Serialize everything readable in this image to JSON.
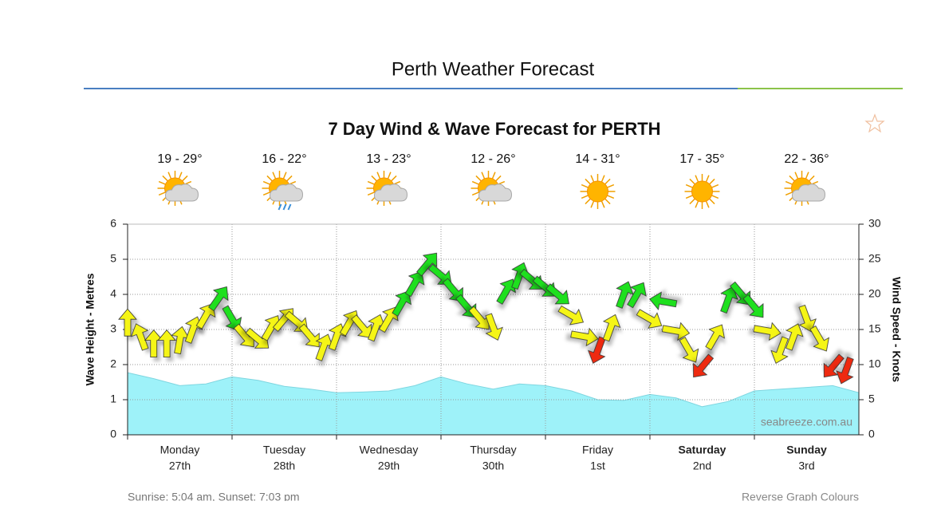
{
  "page_title": "Perth Weather Forecast",
  "chart_data": {
    "type": "wind-wave",
    "title": "7 Day Wind & Wave Forecast for PERTH",
    "days": [
      {
        "name": "Monday",
        "date": "27th",
        "temps": "19 - 29°",
        "bold": false
      },
      {
        "name": "Tuesday",
        "date": "28th",
        "temps": "16 - 22°",
        "bold": false
      },
      {
        "name": "Wednesday",
        "date": "29th",
        "temps": "13 - 23°",
        "bold": false
      },
      {
        "name": "Thursday",
        "date": "30th",
        "temps": "12 - 26°",
        "bold": false
      },
      {
        "name": "Friday",
        "date": "1st",
        "temps": "14 - 31°",
        "bold": false
      },
      {
        "name": "Saturday",
        "date": "2nd",
        "temps": "17 - 35°",
        "bold": true
      },
      {
        "name": "Sunday",
        "date": "3rd",
        "temps": "22 - 36°",
        "bold": true
      }
    ],
    "xlim": [
      0,
      7
    ],
    "y_label": "Wave Height - Metres",
    "y2_label": "Wind Speed - Knots",
    "ylim": [
      0,
      6
    ],
    "yticks": [
      0,
      1,
      2,
      3,
      4,
      5,
      6
    ],
    "y2lim": [
      0,
      30
    ],
    "y2ticks": [
      0,
      5,
      10,
      15,
      20,
      25,
      30
    ],
    "grid": true,
    "wave": {
      "color": "#9ef2f9",
      "x": [
        0,
        0.25,
        0.5,
        0.75,
        1,
        1.25,
        1.5,
        1.75,
        2,
        2.25,
        2.5,
        2.75,
        3,
        3.25,
        3.5,
        3.75,
        4,
        4.25,
        4.5,
        4.75,
        5,
        5.25,
        5.5,
        5.75,
        6,
        6.25,
        6.5,
        6.75,
        7
      ],
      "values": [
        1.77,
        1.6,
        1.4,
        1.45,
        1.65,
        1.55,
        1.38,
        1.3,
        1.2,
        1.22,
        1.25,
        1.4,
        1.65,
        1.45,
        1.3,
        1.45,
        1.4,
        1.25,
        1.0,
        0.98,
        1.15,
        1.05,
        0.8,
        0.95,
        1.25,
        1.3,
        1.35,
        1.4,
        1.2
      ]
    },
    "wind": {
      "axis": "y2",
      "x": [
        0,
        0.125,
        0.25,
        0.375,
        0.5,
        0.625,
        0.75,
        0.875,
        1,
        1.125,
        1.25,
        1.375,
        1.5,
        1.625,
        1.75,
        1.875,
        2,
        2.125,
        2.25,
        2.375,
        2.5,
        2.625,
        2.75,
        2.875,
        3,
        3.125,
        3.25,
        3.375,
        3.5,
        3.625,
        3.75,
        3.875,
        4,
        4.125,
        4.25,
        4.375,
        4.5,
        4.625,
        4.75,
        4.875,
        5,
        5.125,
        5.25,
        5.375,
        5.5,
        5.625,
        5.75,
        5.875,
        6,
        6.125,
        6.25,
        6.375,
        6.5,
        6.625,
        6.75,
        6.875
      ],
      "speeds": [
        16,
        14,
        13,
        13,
        13.5,
        15,
        17,
        19.5,
        16.5,
        14,
        13.6,
        15.3,
        16.5,
        16,
        14,
        12.5,
        14,
        16,
        15.3,
        15.3,
        16.5,
        18.8,
        21.6,
        24.4,
        22.7,
        20.5,
        18.2,
        16.5,
        15.3,
        20.5,
        22.7,
        22,
        21,
        19.9,
        17,
        14,
        12,
        15.3,
        20,
        20,
        16.5,
        19,
        14.8,
        12,
        9.7,
        14,
        19.3,
        20,
        18.2,
        14.8,
        12,
        14,
        16.5,
        13.6,
        9.7,
        9.1
      ],
      "angles": [
        0,
        -20,
        0,
        0,
        10,
        20,
        30,
        35,
        150,
        140,
        130,
        30,
        40,
        130,
        140,
        20,
        20,
        30,
        140,
        20,
        30,
        30,
        30,
        40,
        130,
        140,
        140,
        140,
        160,
        30,
        20,
        130,
        130,
        130,
        120,
        100,
        200,
        20,
        20,
        30,
        120,
        280,
        100,
        150,
        220,
        30,
        20,
        140,
        140,
        100,
        200,
        20,
        160,
        150,
        220,
        200
      ],
      "colors": [
        "#f5f516",
        "#f5f516",
        "#f5f516",
        "#f5f516",
        "#f5f516",
        "#f5f516",
        "#f5f516",
        "#1ee01e",
        "#1ee01e",
        "#f5f516",
        "#f5f516",
        "#f5f516",
        "#f5f516",
        "#f5f516",
        "#f5f516",
        "#f5f516",
        "#f5f516",
        "#f5f516",
        "#f5f516",
        "#f5f516",
        "#f5f516",
        "#1ee01e",
        "#1ee01e",
        "#1ee01e",
        "#1ee01e",
        "#1ee01e",
        "#1ee01e",
        "#f5f516",
        "#f5f516",
        "#1ee01e",
        "#1ee01e",
        "#1ee01e",
        "#1ee01e",
        "#1ee01e",
        "#f5f516",
        "#f5f516",
        "#ee2a10",
        "#f5f516",
        "#1ee01e",
        "#1ee01e",
        "#f5f516",
        "#1ee01e",
        "#f5f516",
        "#f5f516",
        "#ee2a10",
        "#f5f516",
        "#1ee01e",
        "#1ee01e",
        "#1ee01e",
        "#f5f516",
        "#f5f516",
        "#f5f516",
        "#f5f516",
        "#f5f516",
        "#ee2a10",
        "#ee2a10"
      ]
    },
    "watermark": "seabreeze.com.au"
  },
  "footer": {
    "sun_times": "Sunrise: 5:04 am, Sunset: 7:03 pm",
    "link": "Reverse Graph Colours"
  }
}
